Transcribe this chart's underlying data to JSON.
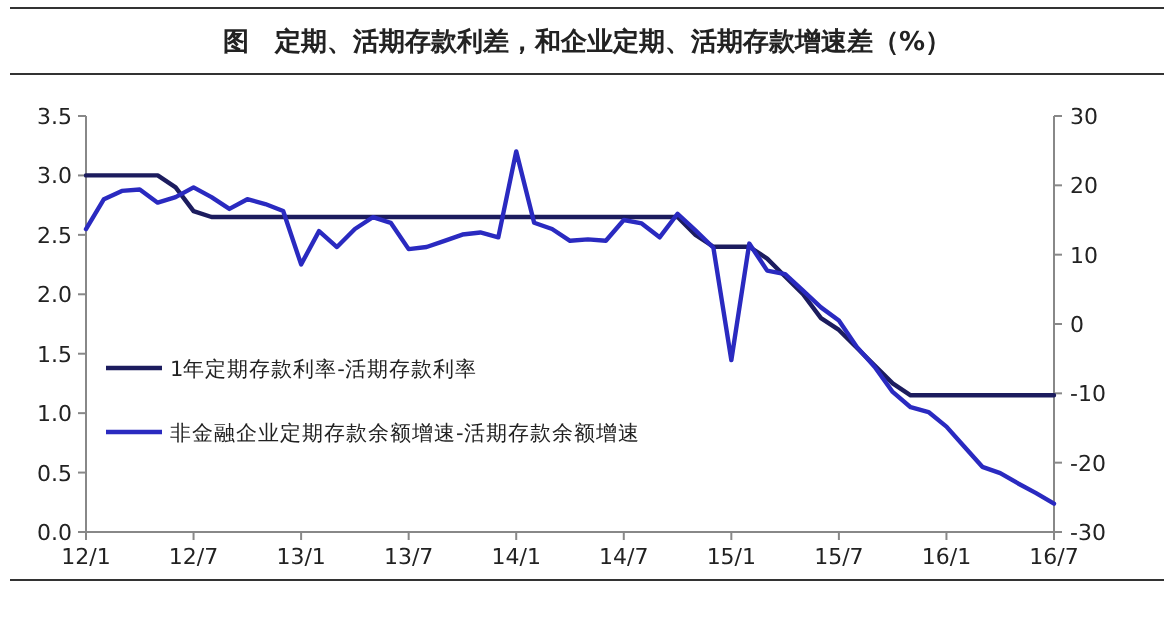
{
  "chart_data": {
    "type": "line",
    "title": "图　定期、活期存款利差，和企业定期、活期存款增速差（%）",
    "categories": [
      "12/1",
      null,
      null,
      null,
      null,
      null,
      "12/7",
      null,
      null,
      null,
      null,
      null,
      "13/1",
      null,
      null,
      null,
      null,
      null,
      "13/7",
      null,
      null,
      null,
      null,
      null,
      "14/1",
      null,
      null,
      null,
      null,
      null,
      "14/7",
      null,
      null,
      null,
      null,
      null,
      "15/1",
      null,
      null,
      null,
      null,
      null,
      "15/7",
      null,
      null,
      null,
      null,
      null,
      "16/1",
      null,
      null,
      null,
      null,
      null,
      "16/7"
    ],
    "series": [
      {
        "name": "1年定期存款利率-活期存款利率",
        "color": "#1c1c5e",
        "values": [
          3.0,
          3.0,
          3.0,
          3.0,
          3.0,
          2.9,
          2.7,
          2.65,
          2.65,
          2.65,
          2.65,
          2.65,
          2.65,
          2.65,
          2.65,
          2.65,
          2.65,
          2.65,
          2.65,
          2.65,
          2.65,
          2.65,
          2.65,
          2.65,
          2.65,
          2.65,
          2.65,
          2.65,
          2.65,
          2.65,
          2.65,
          2.65,
          2.65,
          2.65,
          2.5,
          2.4,
          2.4,
          2.4,
          2.3,
          2.15,
          2.0,
          1.8,
          1.7,
          1.55,
          1.4,
          1.25,
          1.15,
          1.15,
          1.15,
          1.15,
          1.15,
          1.15,
          1.15,
          1.15,
          1.15
        ]
      },
      {
        "name": "非金融企业定期存款余额增速-活期存款余额增速",
        "color": "#2a2ac0",
        "axis": "y2",
        "values": [
          13.7,
          18,
          19.2,
          19.4,
          17.5,
          18.3,
          19.7,
          18.3,
          16.6,
          18,
          17.3,
          16.3,
          8.6,
          13.4,
          11.1,
          13.7,
          15.4,
          14.6,
          10.8,
          11.1,
          12,
          12.9,
          13.2,
          12.5,
          24.9,
          14.6,
          13.7,
          12,
          12.2,
          12,
          15,
          14.5,
          12.5,
          15.9,
          13.5,
          11,
          -5.2,
          11.6,
          7.7,
          7.2,
          4.8,
          2.4,
          0.5,
          -3.3,
          -6.2,
          -9.8,
          -12,
          -12.7,
          -14.8,
          -17.7,
          -20.6,
          -21.5,
          -23,
          -24.4,
          -25.9
        ]
      }
    ],
    "ylim": [
      0,
      3.5
    ],
    "yticks": [
      {
        "value": 0,
        "label": "0.0"
      },
      {
        "value": 0.5,
        "label": "0.5"
      },
      {
        "value": 1,
        "label": "1.0"
      },
      {
        "value": 1.5,
        "label": "1.5"
      },
      {
        "value": 2,
        "label": "2.0"
      },
      {
        "value": 2.5,
        "label": "2.5"
      },
      {
        "value": 3,
        "label": "3.0"
      },
      {
        "value": 3.5,
        "label": "3.5"
      }
    ],
    "y2lim": [
      -30,
      30
    ],
    "y2ticks": [
      -30,
      -20,
      -10,
      0,
      10,
      20,
      30
    ],
    "legend": "bottom left",
    "grid": false,
    "marker": "none",
    "line_style": "solid"
  }
}
